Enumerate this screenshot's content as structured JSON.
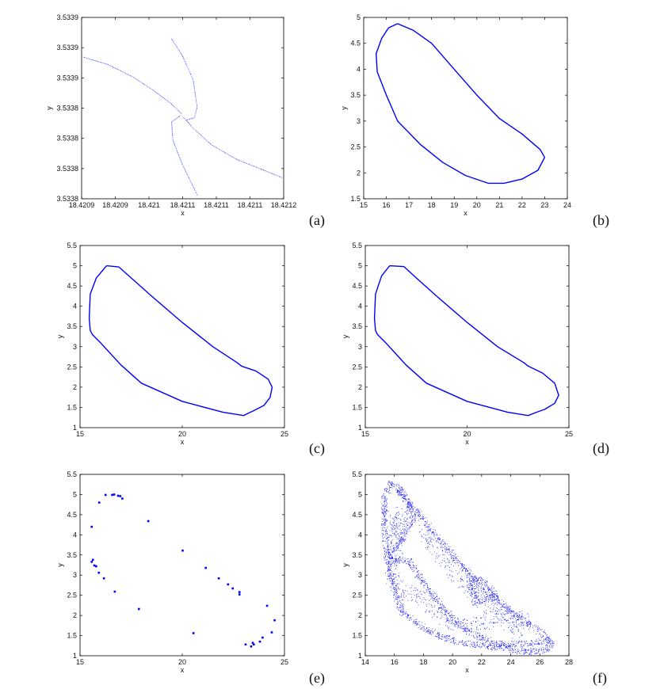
{
  "chart_data": [
    {
      "panel": "(a)",
      "type": "scatter",
      "xlabel": "x",
      "ylabel": "y",
      "xlim": [
        18.4209,
        18.4212
      ],
      "ylim": [
        3.53377,
        3.53389
      ],
      "xticks": [
        18.4209,
        18.42095,
        18.421,
        18.42105,
        18.4211,
        18.42115,
        18.4212
      ],
      "xtick_labels": [
        "18.4209",
        "18.4209",
        "18.421",
        "18.4211",
        "18.4211",
        "18.4211",
        "18.4212"
      ],
      "yticks": [
        3.53377,
        3.53379,
        3.53381,
        3.53383,
        3.53385,
        3.53387,
        3.53389
      ],
      "ytick_labels": [
        "3.5338",
        "3.5338",
        "3.5338",
        "3.5338",
        "3.5339",
        "3.5339",
        "3.5339"
      ],
      "color": "#0000ff",
      "style": "dots",
      "series": [
        {
          "points": [
            [
              18.420902,
              3.533864
            ],
            [
              18.420939,
              3.533859
            ],
            [
              18.420975,
              3.533851
            ],
            [
              18.421006,
              3.533842
            ],
            [
              18.421033,
              3.533833
            ],
            [
              18.421049,
              3.533826
            ]
          ]
        },
        {
          "points": [
            [
              18.421051,
              3.533824
            ],
            [
              18.421065,
              3.533817
            ],
            [
              18.421092,
              3.533806
            ],
            [
              18.421131,
              3.533796
            ],
            [
              18.421171,
              3.533789
            ],
            [
              18.421198,
              3.533784
            ]
          ]
        },
        {
          "points": [
            [
              18.421033,
              3.533876
            ],
            [
              18.421049,
              3.533865
            ],
            [
              18.421065,
              3.533849
            ],
            [
              18.421071,
              3.533831
            ],
            [
              18.421067,
              3.533824
            ],
            [
              18.421053,
              3.533822
            ]
          ]
        },
        {
          "points": [
            [
              18.421045,
              3.533825
            ],
            [
              18.421033,
              3.533821
            ],
            [
              18.421035,
              3.533809
            ],
            [
              18.421049,
              3.533793
            ],
            [
              18.421072,
              3.533772
            ]
          ]
        }
      ]
    },
    {
      "panel": "(b)",
      "type": "line",
      "xlabel": "x",
      "ylabel": "y",
      "xlim": [
        15,
        24
      ],
      "ylim": [
        1.5,
        5
      ],
      "xticks": [
        15,
        16,
        17,
        18,
        19,
        20,
        21,
        22,
        23,
        24
      ],
      "xtick_labels": [
        "15",
        "16",
        "17",
        "18",
        "19",
        "20",
        "21",
        "22",
        "23",
        "24"
      ],
      "yticks": [
        1.5,
        2,
        2.5,
        3,
        3.5,
        4,
        4.5,
        5
      ],
      "ytick_labels": [
        "1.5",
        "2",
        "2.5",
        "3",
        "3.5",
        "4",
        "4.5",
        "5"
      ],
      "color": "#0000ff",
      "style": "line",
      "series": [
        {
          "points": [
            [
              16.5,
              4.88
            ],
            [
              17.2,
              4.75
            ],
            [
              18,
              4.5
            ],
            [
              19,
              4.0
            ],
            [
              20,
              3.5
            ],
            [
              21,
              3.05
            ],
            [
              22,
              2.75
            ],
            [
              22.8,
              2.45
            ],
            [
              23,
              2.3
            ],
            [
              22.7,
              2.05
            ],
            [
              22,
              1.88
            ],
            [
              21.2,
              1.8
            ],
            [
              20.5,
              1.8
            ],
            [
              19.5,
              1.95
            ],
            [
              18.5,
              2.2
            ],
            [
              17.5,
              2.55
            ],
            [
              16.5,
              3.0
            ],
            [
              16,
              3.5
            ],
            [
              15.6,
              3.95
            ],
            [
              15.55,
              4.3
            ],
            [
              15.8,
              4.6
            ],
            [
              16.1,
              4.8
            ],
            [
              16.5,
              4.88
            ]
          ]
        }
      ]
    },
    {
      "panel": "(c)",
      "type": "line",
      "xlabel": "x",
      "ylabel": "y",
      "xlim": [
        15,
        25
      ],
      "ylim": [
        1,
        5.5
      ],
      "xticks": [
        15,
        20,
        25
      ],
      "xtick_labels": [
        "15",
        "20",
        "25"
      ],
      "yticks": [
        1,
        1.5,
        2,
        2.5,
        3,
        3.5,
        4,
        4.5,
        5,
        5.5
      ],
      "ytick_labels": [
        "1",
        "1.5",
        "2",
        "2.5",
        "3",
        "3.5",
        "4",
        "4.5",
        "5",
        "5.5"
      ],
      "color": "#0000ff",
      "style": "line",
      "series": [
        {
          "points": [
            [
              16.3,
              5.0
            ],
            [
              16.9,
              4.97
            ],
            [
              17.5,
              4.7
            ],
            [
              18.5,
              4.25
            ],
            [
              20,
              3.6
            ],
            [
              21.5,
              3.0
            ],
            [
              22.7,
              2.6
            ],
            [
              22.9,
              2.52
            ],
            [
              23.6,
              2.4
            ],
            [
              24.2,
              2.2
            ],
            [
              24.4,
              2.0
            ],
            [
              24.3,
              1.75
            ],
            [
              24,
              1.55
            ],
            [
              23.5,
              1.42
            ],
            [
              23.2,
              1.35
            ],
            [
              23,
              1.3
            ],
            [
              22,
              1.38
            ],
            [
              20,
              1.65
            ],
            [
              18,
              2.1
            ],
            [
              17,
              2.55
            ],
            [
              16,
              3.1
            ],
            [
              15.6,
              3.3
            ],
            [
              15.5,
              3.4
            ],
            [
              15.45,
              3.7
            ],
            [
              15.5,
              4.3
            ],
            [
              15.8,
              4.7
            ],
            [
              16.3,
              5.0
            ]
          ]
        }
      ]
    },
    {
      "panel": "(d)",
      "type": "line",
      "xlabel": "x",
      "ylabel": "y",
      "xlim": [
        15,
        25
      ],
      "ylim": [
        1,
        5.5
      ],
      "xticks": [
        15,
        20,
        25
      ],
      "xtick_labels": [
        "15",
        "20",
        "25"
      ],
      "yticks": [
        1,
        1.5,
        2,
        2.5,
        3,
        3.5,
        4,
        4.5,
        5,
        5.5
      ],
      "ytick_labels": [
        "1",
        "1.5",
        "2",
        "2.5",
        "3",
        "3.5",
        "4",
        "4.5",
        "5",
        "5.5"
      ],
      "color": "#0000ff",
      "style": "line",
      "series": [
        {
          "points": [
            [
              16.2,
              5.0
            ],
            [
              16.9,
              4.98
            ],
            [
              17.5,
              4.7
            ],
            [
              18.5,
              4.25
            ],
            [
              20,
              3.6
            ],
            [
              21.5,
              3.0
            ],
            [
              22.8,
              2.6
            ],
            [
              23.0,
              2.52
            ],
            [
              23.7,
              2.35
            ],
            [
              24.3,
              2.1
            ],
            [
              24.5,
              1.8
            ],
            [
              24.3,
              1.6
            ],
            [
              23.8,
              1.45
            ],
            [
              23.4,
              1.38
            ],
            [
              23,
              1.3
            ],
            [
              22,
              1.38
            ],
            [
              20,
              1.65
            ],
            [
              18,
              2.1
            ],
            [
              17,
              2.55
            ],
            [
              16,
              3.1
            ],
            [
              15.6,
              3.3
            ],
            [
              15.5,
              3.4
            ],
            [
              15.45,
              3.7
            ],
            [
              15.5,
              4.3
            ],
            [
              15.8,
              4.75
            ],
            [
              16.2,
              5.0
            ]
          ]
        }
      ]
    },
    {
      "panel": "(e)",
      "type": "scatter",
      "xlabel": "x",
      "ylabel": "y",
      "xlim": [
        15,
        25
      ],
      "ylim": [
        1,
        5.5
      ],
      "xticks": [
        15,
        20,
        25
      ],
      "xtick_labels": [
        "15",
        "20",
        "25"
      ],
      "yticks": [
        1,
        1.5,
        2,
        2.5,
        3,
        3.5,
        4,
        4.5,
        5,
        5.5
      ],
      "ytick_labels": [
        "1",
        "1.5",
        "2",
        "2.5",
        "3",
        "3.5",
        "4",
        "4.5",
        "5",
        "5.5"
      ],
      "color": "#0000ff",
      "style": "markers",
      "series": [
        {
          "points": [
            [
              15.57,
              4.2
            ],
            [
              15.94,
              4.8
            ],
            [
              16.25,
              4.99
            ],
            [
              16.57,
              4.99
            ],
            [
              16.67,
              5.0
            ],
            [
              16.86,
              4.97
            ],
            [
              16.97,
              4.96
            ],
            [
              17.07,
              4.9
            ],
            [
              18.34,
              4.34
            ],
            [
              15.57,
              3.33
            ],
            [
              15.63,
              3.38
            ],
            [
              15.7,
              3.24
            ],
            [
              15.79,
              3.22
            ],
            [
              15.92,
              3.06
            ],
            [
              16.17,
              2.92
            ],
            [
              16.7,
              2.59
            ],
            [
              17.88,
              2.16
            ],
            [
              20.02,
              3.61
            ],
            [
              21.15,
              3.18
            ],
            [
              21.79,
              2.92
            ],
            [
              22.24,
              2.77
            ],
            [
              22.47,
              2.67
            ],
            [
              22.8,
              2.58
            ],
            [
              22.8,
              2.52
            ],
            [
              24.15,
              2.24
            ],
            [
              24.52,
              1.88
            ],
            [
              24.38,
              1.58
            ],
            [
              23.93,
              1.45
            ],
            [
              23.8,
              1.35
            ],
            [
              23.45,
              1.32
            ],
            [
              23.5,
              1.28
            ],
            [
              23.37,
              1.23
            ],
            [
              23.1,
              1.28
            ],
            [
              20.55,
              1.56
            ]
          ]
        }
      ]
    },
    {
      "panel": "(f)",
      "type": "scatter",
      "xlabel": "x",
      "ylabel": "y",
      "xlim": [
        14,
        28
      ],
      "ylim": [
        1,
        5.5
      ],
      "xticks": [
        14,
        16,
        18,
        20,
        22,
        24,
        26,
        28
      ],
      "xtick_labels": [
        "14",
        "16",
        "18",
        "20",
        "22",
        "24",
        "26",
        "28"
      ],
      "yticks": [
        1,
        1.5,
        2,
        2.5,
        3,
        3.5,
        4,
        4.5,
        5,
        5.5
      ],
      "ytick_labels": [
        "1",
        "1.5",
        "2",
        "2.5",
        "3",
        "3.5",
        "4",
        "4.5",
        "5",
        "5.5"
      ],
      "color": "#0000ff",
      "style": "dense-dots",
      "series": [
        {
          "points": [
            [
              15.7,
              5.3
            ],
            [
              16.5,
              5.0
            ],
            [
              17.5,
              4.6
            ],
            [
              19,
              3.9
            ],
            [
              20.5,
              3.3
            ],
            [
              22,
              2.7
            ],
            [
              24,
              2.1
            ],
            [
              26,
              1.6
            ],
            [
              26.8,
              1.35
            ],
            [
              26.5,
              1.15
            ],
            [
              25,
              1.1
            ],
            [
              23.5,
              1.2
            ],
            [
              21,
              1.3
            ],
            [
              19,
              1.5
            ],
            [
              17.5,
              1.8
            ],
            [
              16.5,
              2.1
            ],
            [
              16,
              2.6
            ],
            [
              15.5,
              3.4
            ],
            [
              15.3,
              4.2
            ],
            [
              15.3,
              4.9
            ],
            [
              15.7,
              5.3
            ]
          ]
        },
        {
          "points": [
            [
              15.5,
              3.4
            ],
            [
              16.5,
              3.9
            ],
            [
              17.3,
              4.4
            ],
            [
              17.0,
              4.8
            ],
            [
              16.2,
              5.2
            ]
          ]
        },
        {
          "points": [
            [
              15.6,
              3.4
            ],
            [
              17,
              3.35
            ],
            [
              18,
              2.8
            ],
            [
              19.5,
              2.1
            ],
            [
              21,
              1.6
            ],
            [
              23,
              1.3
            ],
            [
              25,
              1.3
            ],
            [
              26.5,
              1.4
            ]
          ]
        },
        {
          "points": [
            [
              21,
              2.9
            ],
            [
              22,
              2.9
            ],
            [
              23,
              2.5
            ],
            [
              21.5,
              2.3
            ],
            [
              21.3,
              2.8
            ]
          ]
        },
        {
          "points": [
            [
              15.5,
              4.5
            ],
            [
              16,
              4.0
            ],
            [
              16.5,
              4.6
            ],
            [
              15.8,
              3.0
            ],
            [
              16.5,
              2.5
            ],
            [
              17.5,
              2.6
            ],
            [
              18.5,
              2.2
            ],
            [
              20,
              1.8
            ],
            [
              22,
              1.8
            ],
            [
              23,
              2.0
            ],
            [
              24.5,
              1.6
            ],
            [
              25,
              1.9
            ],
            [
              22.5,
              2.2
            ],
            [
              19,
              3.5
            ],
            [
              18,
              4.1
            ]
          ]
        }
      ]
    }
  ]
}
